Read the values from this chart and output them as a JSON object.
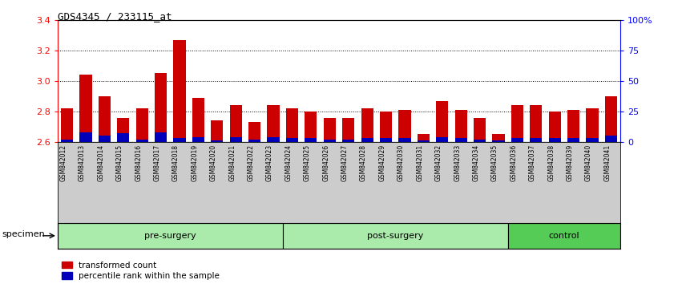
{
  "title": "GDS4345 / 233115_at",
  "samples": [
    "GSM842012",
    "GSM842013",
    "GSM842014",
    "GSM842015",
    "GSM842016",
    "GSM842017",
    "GSM842018",
    "GSM842019",
    "GSM842020",
    "GSM842021",
    "GSM842022",
    "GSM842023",
    "GSM842024",
    "GSM842025",
    "GSM842026",
    "GSM842027",
    "GSM842028",
    "GSM842029",
    "GSM842030",
    "GSM842031",
    "GSM842032",
    "GSM842033",
    "GSM842034",
    "GSM842035",
    "GSM842036",
    "GSM842037",
    "GSM842038",
    "GSM842039",
    "GSM842040",
    "GSM842041"
  ],
  "transformed_count": [
    2.82,
    3.04,
    2.9,
    2.76,
    2.82,
    3.05,
    3.27,
    2.89,
    2.74,
    2.84,
    2.73,
    2.84,
    2.82,
    2.8,
    2.76,
    2.76,
    2.82,
    2.8,
    2.81,
    2.65,
    2.87,
    2.81,
    2.76,
    2.65,
    2.84,
    2.84,
    2.8,
    2.81,
    2.82,
    2.9
  ],
  "percentile_rank": [
    2,
    8,
    5,
    7,
    2,
    8,
    3,
    4,
    1,
    4,
    2,
    4,
    3,
    3,
    2,
    2,
    3,
    3,
    3,
    1,
    4,
    3,
    2,
    1,
    3,
    3,
    3,
    3,
    3,
    5
  ],
  "groups": [
    {
      "label": "pre-surgery",
      "start": 0,
      "end": 12,
      "light": true
    },
    {
      "label": "post-surgery",
      "start": 12,
      "end": 24,
      "light": true
    },
    {
      "label": "control",
      "start": 24,
      "end": 30,
      "light": false
    }
  ],
  "ylim": [
    2.6,
    3.4
  ],
  "y2lim": [
    0,
    100
  ],
  "yticks": [
    2.6,
    2.8,
    3.0,
    3.2,
    3.4
  ],
  "y2ticks": [
    0,
    25,
    50,
    75,
    100
  ],
  "y2ticklabels": [
    "0",
    "25",
    "50",
    "75",
    "100%"
  ],
  "bar_color_red": "#cc0000",
  "bar_color_blue": "#0000bb",
  "tick_bg": "#cccccc",
  "group_light": "#aaeaaa",
  "group_dark": "#55cc55",
  "specimen_label": "specimen",
  "legend_items": [
    {
      "color": "#cc0000",
      "label": "transformed count"
    },
    {
      "color": "#0000bb",
      "label": "percentile rank within the sample"
    }
  ]
}
